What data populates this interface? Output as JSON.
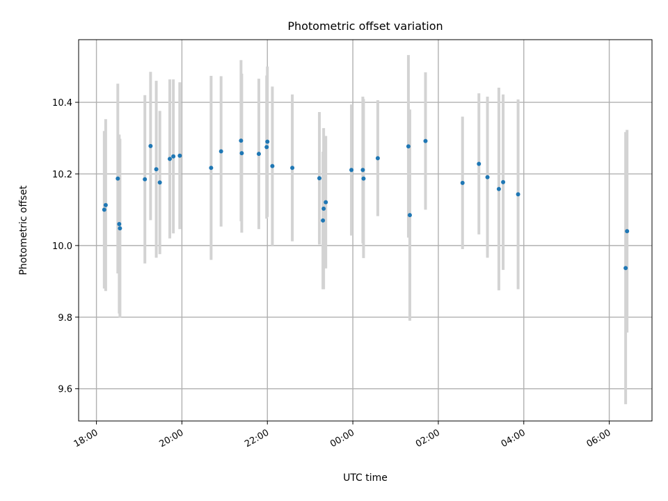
{
  "chart_data": {
    "type": "scatter",
    "title": "Photometric offset variation",
    "xlabel": "UTC time",
    "ylabel": "Photometric offset",
    "xlim": [
      "17:35",
      "31:00"
    ],
    "ylim": [
      9.51,
      10.575
    ],
    "x_ticks": [
      {
        "at": "18:00",
        "label": "18:00"
      },
      {
        "at": "20:00",
        "label": "20:00"
      },
      {
        "at": "22:00",
        "label": "22:00"
      },
      {
        "at": "24:00",
        "label": "00:00"
      },
      {
        "at": "26:00",
        "label": "02:00"
      },
      {
        "at": "28:00",
        "label": "04:00"
      },
      {
        "at": "30:00",
        "label": "06:00"
      }
    ],
    "y_ticks": [
      9.6,
      9.8,
      10.0,
      10.2,
      10.4
    ],
    "y_tick_labels": [
      "9.6",
      "9.8",
      "10.0",
      "10.2",
      "10.4"
    ],
    "grid": true,
    "legend": false,
    "colors": {
      "point": "#1f77b4",
      "errorbar": "#d3d3d3",
      "grid": "#b0b0b0"
    },
    "points": [
      {
        "t": "18:11",
        "y": 10.1,
        "err": 0.22
      },
      {
        "t": "18:13",
        "y": 10.113,
        "err": 0.24
      },
      {
        "t": "18:30",
        "y": 10.187,
        "err": 0.265
      },
      {
        "t": "18:32",
        "y": 10.06,
        "err": 0.25
      },
      {
        "t": "18:33",
        "y": 10.048,
        "err": 0.25
      },
      {
        "t": "19:08",
        "y": 10.185,
        "err": 0.235
      },
      {
        "t": "19:16",
        "y": 10.278,
        "err": 0.207
      },
      {
        "t": "19:24",
        "y": 10.213,
        "err": 0.247
      },
      {
        "t": "19:29",
        "y": 10.176,
        "err": 0.2
      },
      {
        "t": "19:43",
        "y": 10.242,
        "err": 0.222
      },
      {
        "t": "19:48",
        "y": 10.249,
        "err": 0.215
      },
      {
        "t": "19:57",
        "y": 10.251,
        "err": 0.205
      },
      {
        "t": "20:41",
        "y": 10.217,
        "err": 0.257
      },
      {
        "t": "20:55",
        "y": 10.263,
        "err": 0.21
      },
      {
        "t": "21:23",
        "y": 10.293,
        "err": 0.225
      },
      {
        "t": "21:24",
        "y": 10.258,
        "err": 0.222
      },
      {
        "t": "21:48",
        "y": 10.256,
        "err": 0.21
      },
      {
        "t": "21:59",
        "y": 10.275,
        "err": 0.2
      },
      {
        "t": "22:00",
        "y": 10.29,
        "err": 0.21
      },
      {
        "t": "22:07",
        "y": 10.222,
        "err": 0.222
      },
      {
        "t": "22:35",
        "y": 10.217,
        "err": 0.205
      },
      {
        "t": "23:13",
        "y": 10.188,
        "err": 0.185
      },
      {
        "t": "23:18",
        "y": 10.07,
        "err": 0.192
      },
      {
        "t": "23:19",
        "y": 10.103,
        "err": 0.225
      },
      {
        "t": "23:22",
        "y": 10.121,
        "err": 0.185
      },
      {
        "t": "23:58",
        "y": 10.211,
        "err": 0.183
      },
      {
        "t": "24:14",
        "y": 10.211,
        "err": 0.205
      },
      {
        "t": "24:15",
        "y": 10.187,
        "err": 0.222
      },
      {
        "t": "24:35",
        "y": 10.244,
        "err": 0.162
      },
      {
        "t": "25:18",
        "y": 10.277,
        "err": 0.255
      },
      {
        "t": "25:20",
        "y": 10.085,
        "err": 0.295
      },
      {
        "t": "25:42",
        "y": 10.292,
        "err": 0.192
      },
      {
        "t": "26:34",
        "y": 10.175,
        "err": 0.185
      },
      {
        "t": "26:57",
        "y": 10.228,
        "err": 0.197
      },
      {
        "t": "27:09",
        "y": 10.191,
        "err": 0.225
      },
      {
        "t": "27:25",
        "y": 10.158,
        "err": 0.283
      },
      {
        "t": "27:31",
        "y": 10.177,
        "err": 0.245
      },
      {
        "t": "27:52",
        "y": 10.143,
        "err": 0.265
      },
      {
        "t": "30:23",
        "y": 9.937,
        "err": 0.38
      },
      {
        "t": "30:25",
        "y": 10.04,
        "err": 0.283
      }
    ]
  }
}
